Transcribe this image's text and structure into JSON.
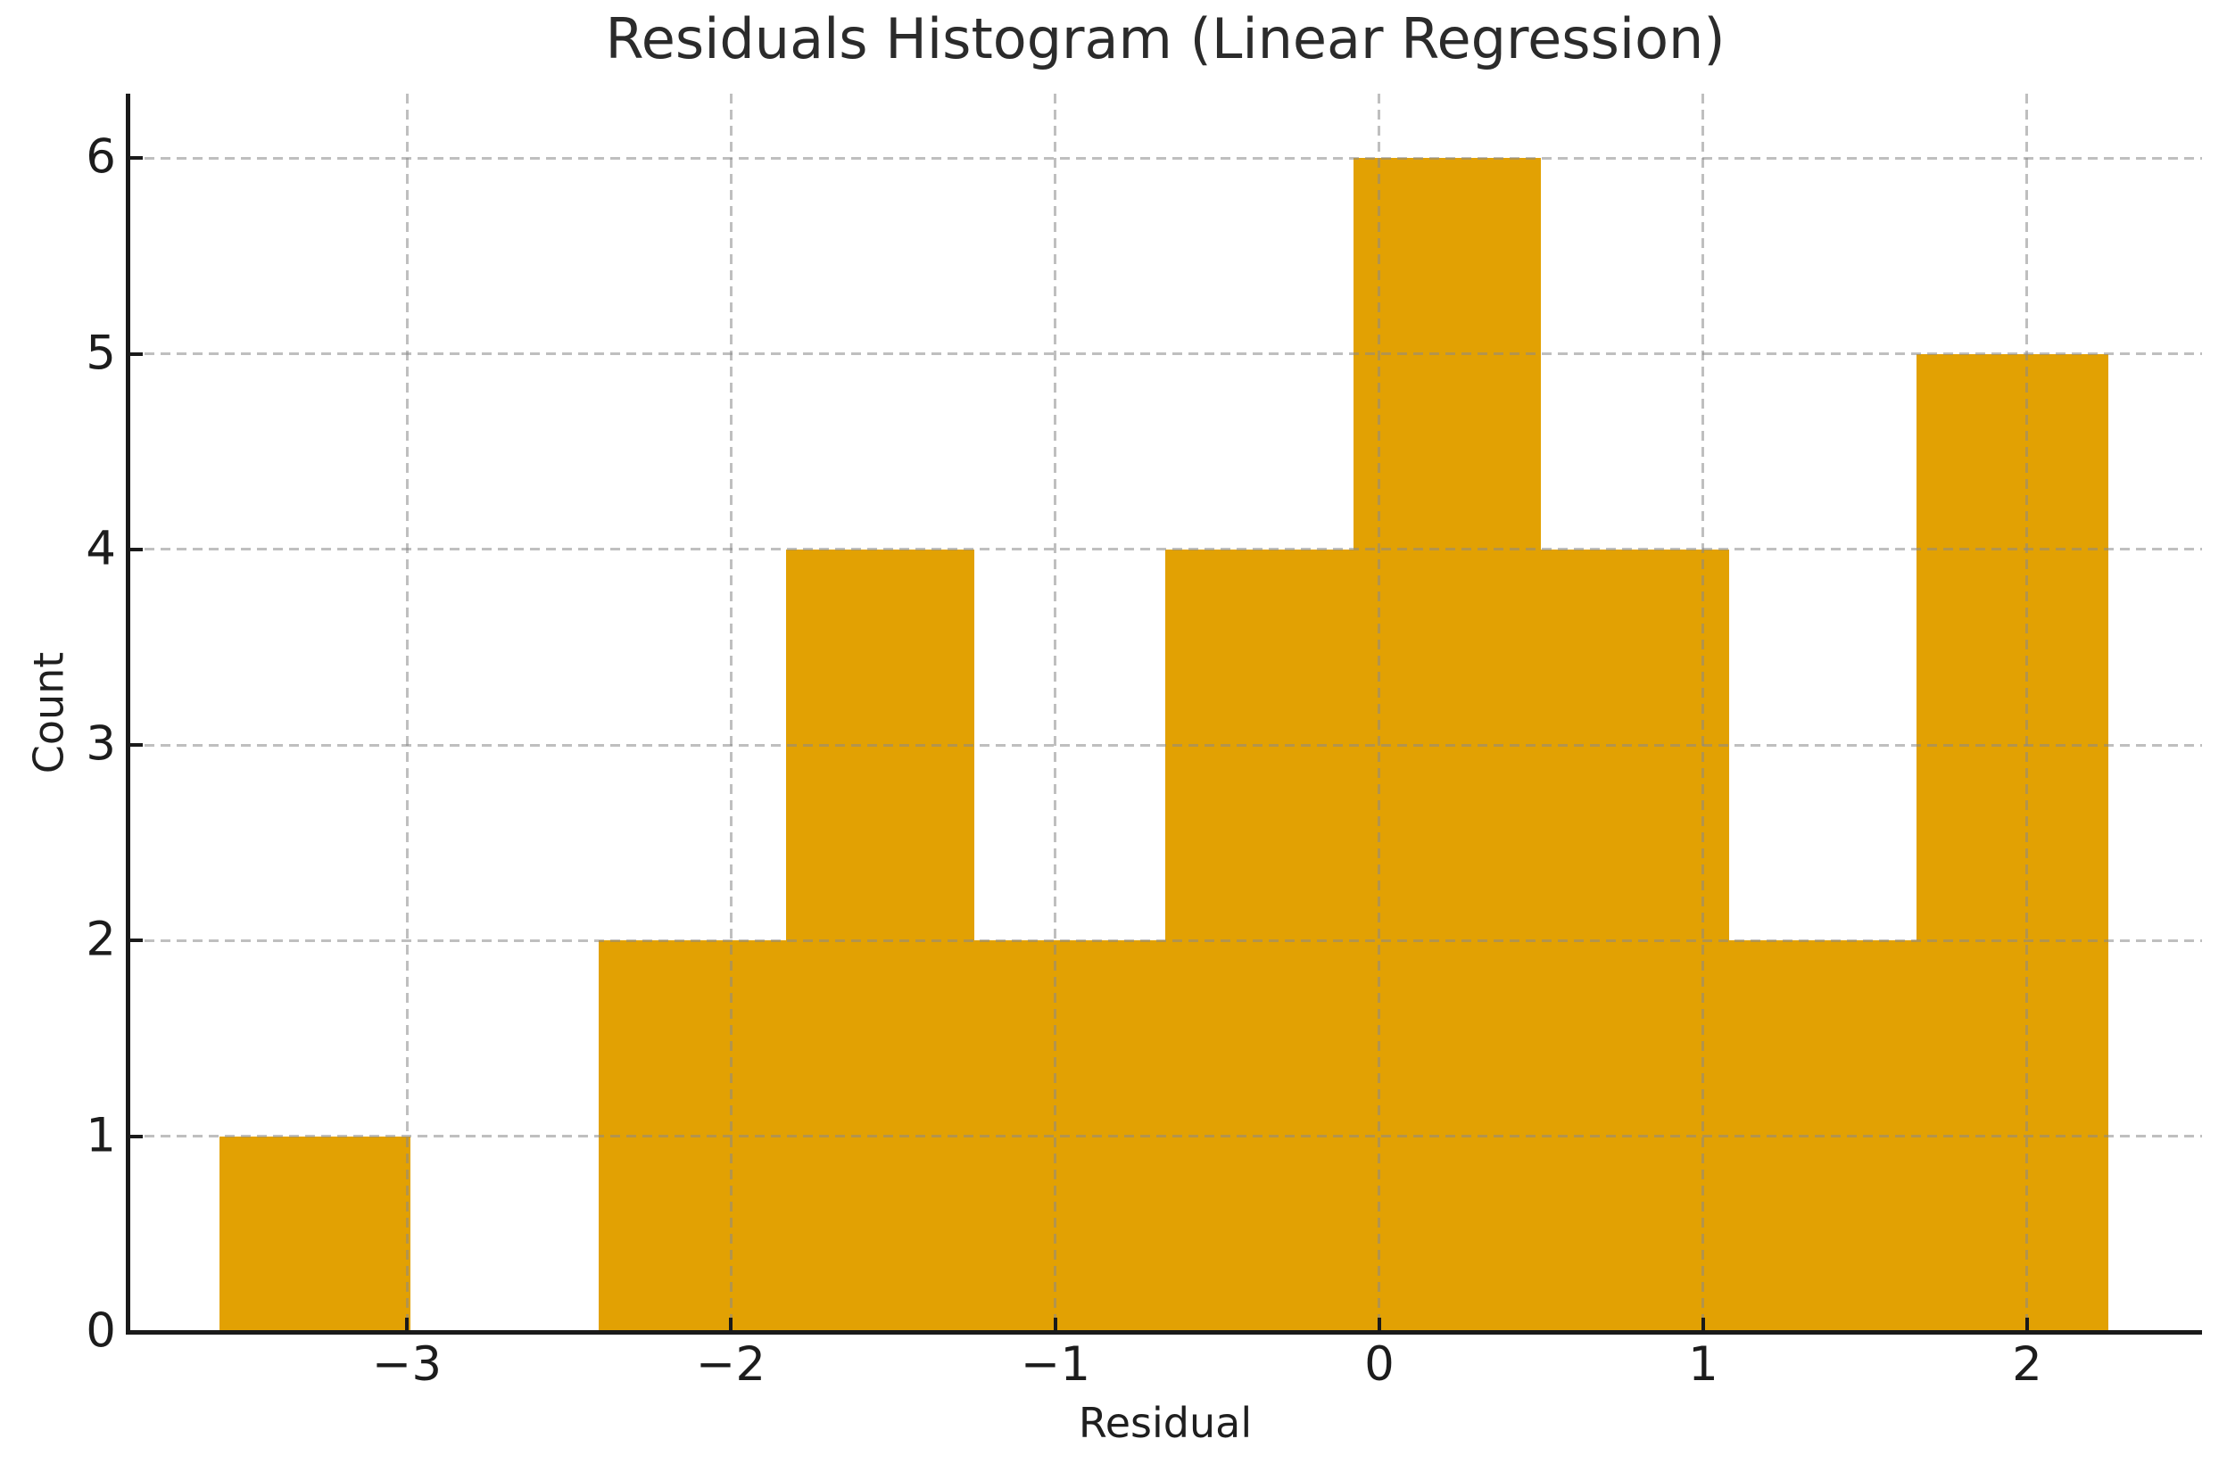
{
  "chart_data": {
    "type": "bar",
    "subtype": "histogram",
    "title": "Residuals Histogram (Linear Regression)",
    "xlabel": "Residual",
    "ylabel": "Count",
    "bin_edges": [
      -3.58,
      -2.99,
      -2.41,
      -1.83,
      -1.25,
      -0.66,
      -0.08,
      0.5,
      1.08,
      1.66,
      2.25
    ],
    "counts": [
      1,
      0,
      2,
      4,
      2,
      4,
      6,
      4,
      2,
      5
    ],
    "x_ticks": [
      -3,
      -2,
      -1,
      0,
      1,
      2
    ],
    "x_tick_labels": [
      "−3",
      "−2",
      "−1",
      "0",
      "1",
      "2"
    ],
    "y_ticks": [
      0,
      1,
      2,
      3,
      4,
      5,
      6
    ],
    "y_tick_labels": [
      "0",
      "1",
      "2",
      "3",
      "4",
      "5",
      "6"
    ],
    "xlim": [
      -3.86,
      2.54
    ],
    "ylim": [
      0,
      6.33
    ],
    "grid": "dashed, drawn above bars",
    "legend_position": "none",
    "bar_color": "#E2A103",
    "grid_color": "#BDBDBD",
    "spine_color": "#1A1A1A",
    "text_color": "#1F1F1F",
    "background_color": "#FFFFFF"
  }
}
